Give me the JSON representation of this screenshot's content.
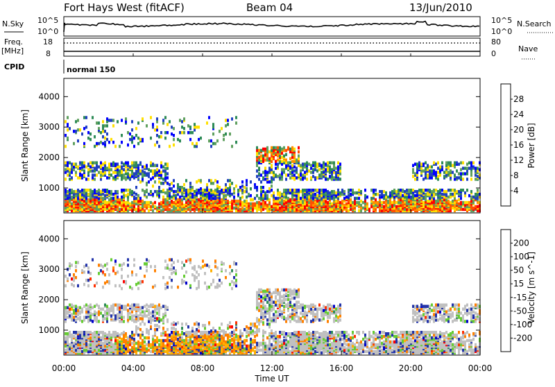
{
  "header": {
    "title": "Fort Hays West (fitACF)",
    "beam": "Beam 04",
    "date": "13/Jun/2010"
  },
  "status_panels": {
    "nsky_label": "N.Sky",
    "nsearch_label": "N.Search",
    "noise_ticks": [
      "10^5",
      "10^0"
    ],
    "freq_label": "Freq.",
    "freq_unit": "[MHz]",
    "freq_ticks": [
      "18",
      "8"
    ],
    "nave_label": "Nave",
    "nave_ticks": [
      "80",
      "0"
    ],
    "cpid_label": "CPID",
    "cpid_value": "normal 150"
  },
  "colors": {
    "power_scale": [
      "#0000ff",
      "#2040c0",
      "#2e8b57",
      "#5fa05f",
      "#ffe000",
      "#ff9000",
      "#ff5000",
      "#ff0000"
    ],
    "velocity_scale": [
      "#0000cc",
      "#2233aa",
      "#2e8b57",
      "#66cc33",
      "#c0c0c0",
      "#ffb000",
      "#ff8000",
      "#ff3000",
      "#ff0000"
    ]
  },
  "chart_data": [
    {
      "type": "heatmap",
      "name": "power",
      "ylabel": "Slant Range [km]",
      "yticks": [
        "4000",
        "3000",
        "2000",
        "1000"
      ],
      "ylim": [
        180,
        4600
      ],
      "colorbar_label": "Power [dB]",
      "colorbar_ticks": [
        "28",
        "24",
        "20",
        "16",
        "12",
        "8",
        "4"
      ],
      "colorbar_range": [
        0,
        32
      ]
    },
    {
      "type": "heatmap",
      "name": "velocity",
      "ylabel": "Slant Range [km]",
      "yticks": [
        "4000",
        "3000",
        "2000",
        "1000"
      ],
      "ylim": [
        180,
        4600
      ],
      "colorbar_label": "Velocity [m s^-1]",
      "colorbar_ticks": [
        "200",
        "100",
        "50",
        "15",
        "-15",
        "-50",
        "-100",
        "-200"
      ]
    }
  ],
  "xaxis": {
    "label": "Time UT",
    "ticks": [
      "00:00",
      "04:00",
      "08:00",
      "12:00",
      "16:00",
      "20:00",
      "00:00"
    ]
  }
}
